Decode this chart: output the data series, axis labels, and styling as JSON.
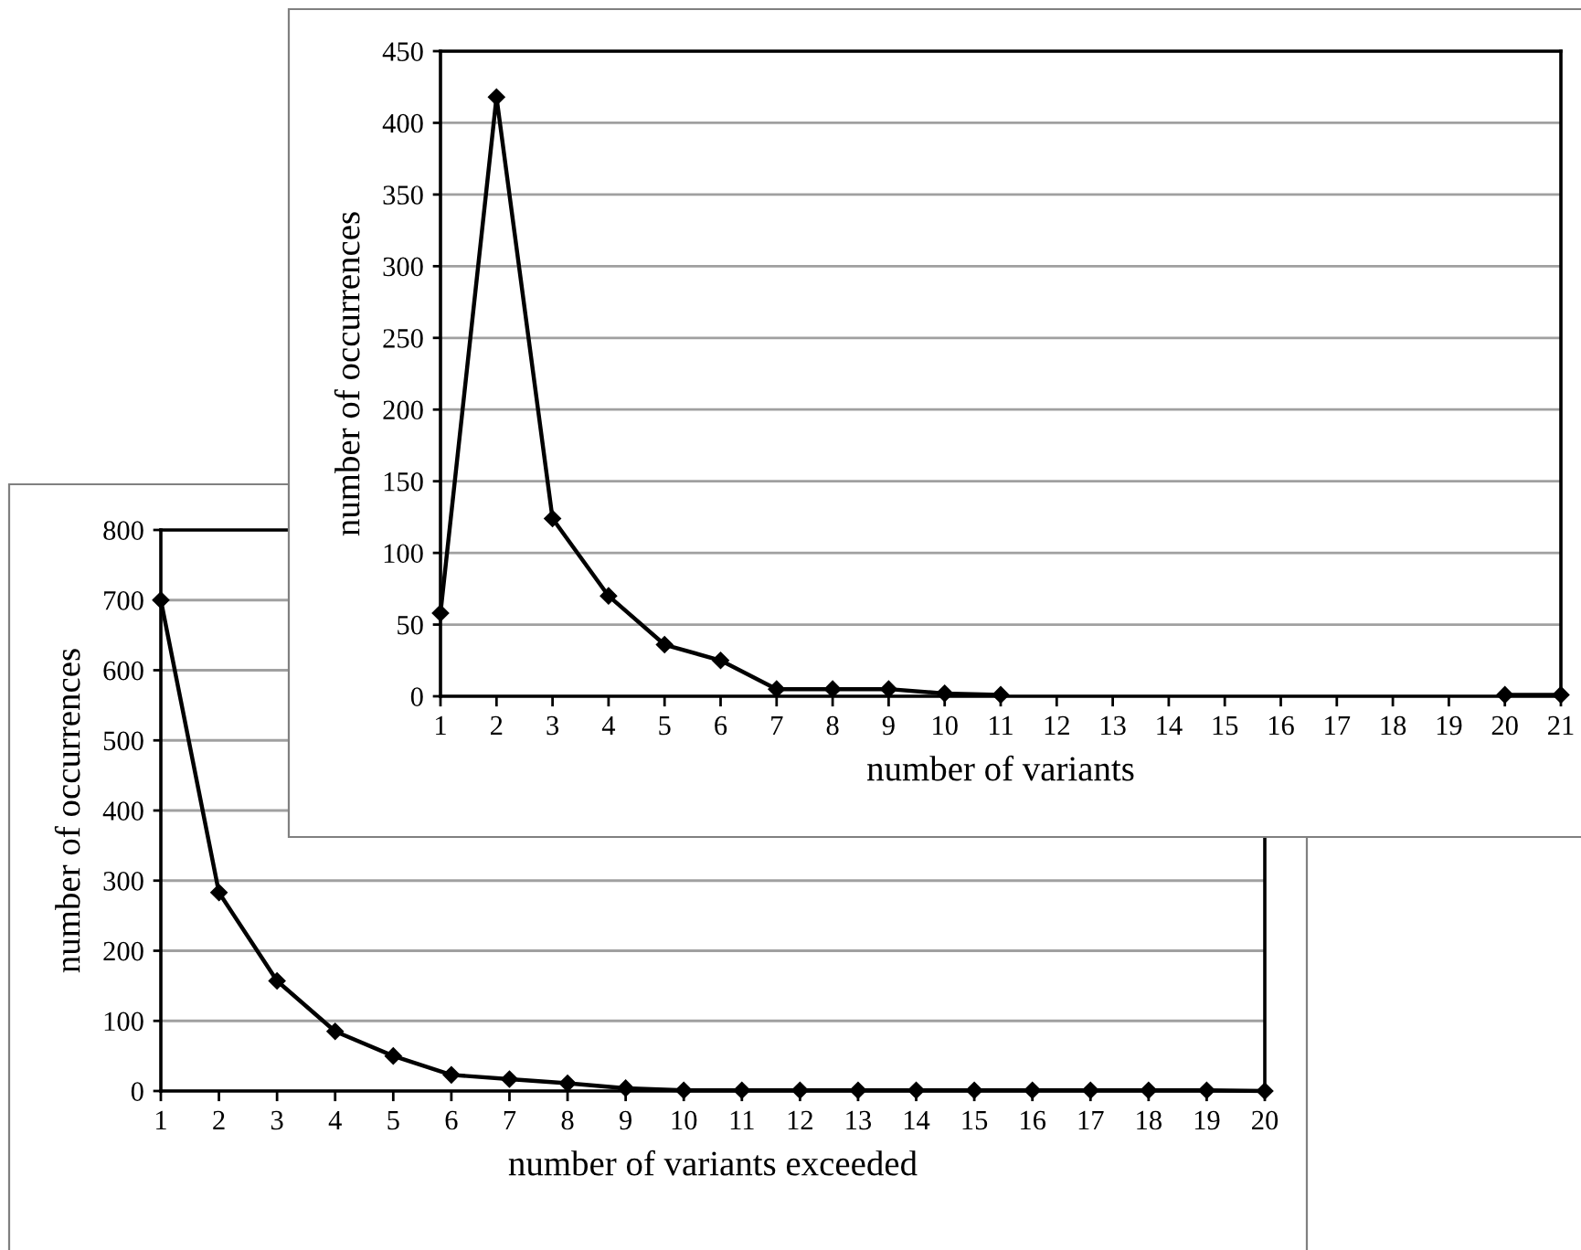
{
  "chart_data": [
    {
      "type": "line",
      "xlabel": "number of variants exceeded",
      "ylabel": "number of occurrences",
      "categories": [
        "1",
        "2",
        "3",
        "4",
        "5",
        "6",
        "7",
        "8",
        "9",
        "10",
        "11",
        "12",
        "13",
        "14",
        "15",
        "16",
        "17",
        "18",
        "19",
        "20"
      ],
      "series": [
        {
          "color": "#000000",
          "values": [
            700,
            283,
            157,
            85,
            50,
            23,
            17,
            11,
            4,
            1,
            1,
            1,
            1,
            1,
            1,
            1,
            1,
            1,
            1,
            0
          ]
        }
      ],
      "ylim": [
        0,
        800
      ],
      "yticks": [
        0,
        100,
        200,
        300,
        400,
        500,
        600,
        700,
        800
      ],
      "grid": "y",
      "marker": "diamond",
      "line_style": "solid",
      "legend": false
    },
    {
      "type": "line",
      "xlabel": "number of variants",
      "ylabel": "number of occurrences",
      "categories": [
        "1",
        "2",
        "3",
        "4",
        "5",
        "6",
        "7",
        "8",
        "9",
        "10",
        "11",
        "12",
        "13",
        "14",
        "15",
        "16",
        "17",
        "18",
        "19",
        "20",
        "21"
      ],
      "series": [
        {
          "color": "#000000",
          "values": [
            58,
            418,
            124,
            70,
            36,
            25,
            5,
            5,
            5,
            2,
            1,
            null,
            null,
            null,
            null,
            null,
            null,
            null,
            null,
            1,
            1
          ]
        }
      ],
      "ylim": [
        0,
        450
      ],
      "yticks": [
        0,
        50,
        100,
        150,
        200,
        250,
        300,
        350,
        400,
        450
      ],
      "grid": "y",
      "marker": "diamond",
      "line_style": "solid",
      "legend": false
    }
  ]
}
